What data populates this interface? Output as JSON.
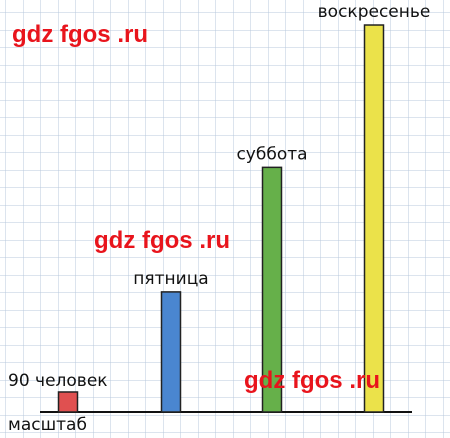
{
  "chart_data": {
    "type": "bar",
    "categories": [
      "масштаб",
      "пятница",
      "суббота",
      "воскресенье"
    ],
    "values": [
      90,
      540,
      1100,
      1740
    ],
    "value_labels": [
      "90 человек",
      null,
      null,
      null
    ],
    "colors": [
      "#e05050",
      "#4a86d0",
      "#66b04a",
      "#ebe24a"
    ],
    "ylim": [
      0,
      1800
    ]
  },
  "watermarks": [
    "gdz fgos .ru",
    "gdz fgos .ru",
    "gdz fgos .ru"
  ]
}
